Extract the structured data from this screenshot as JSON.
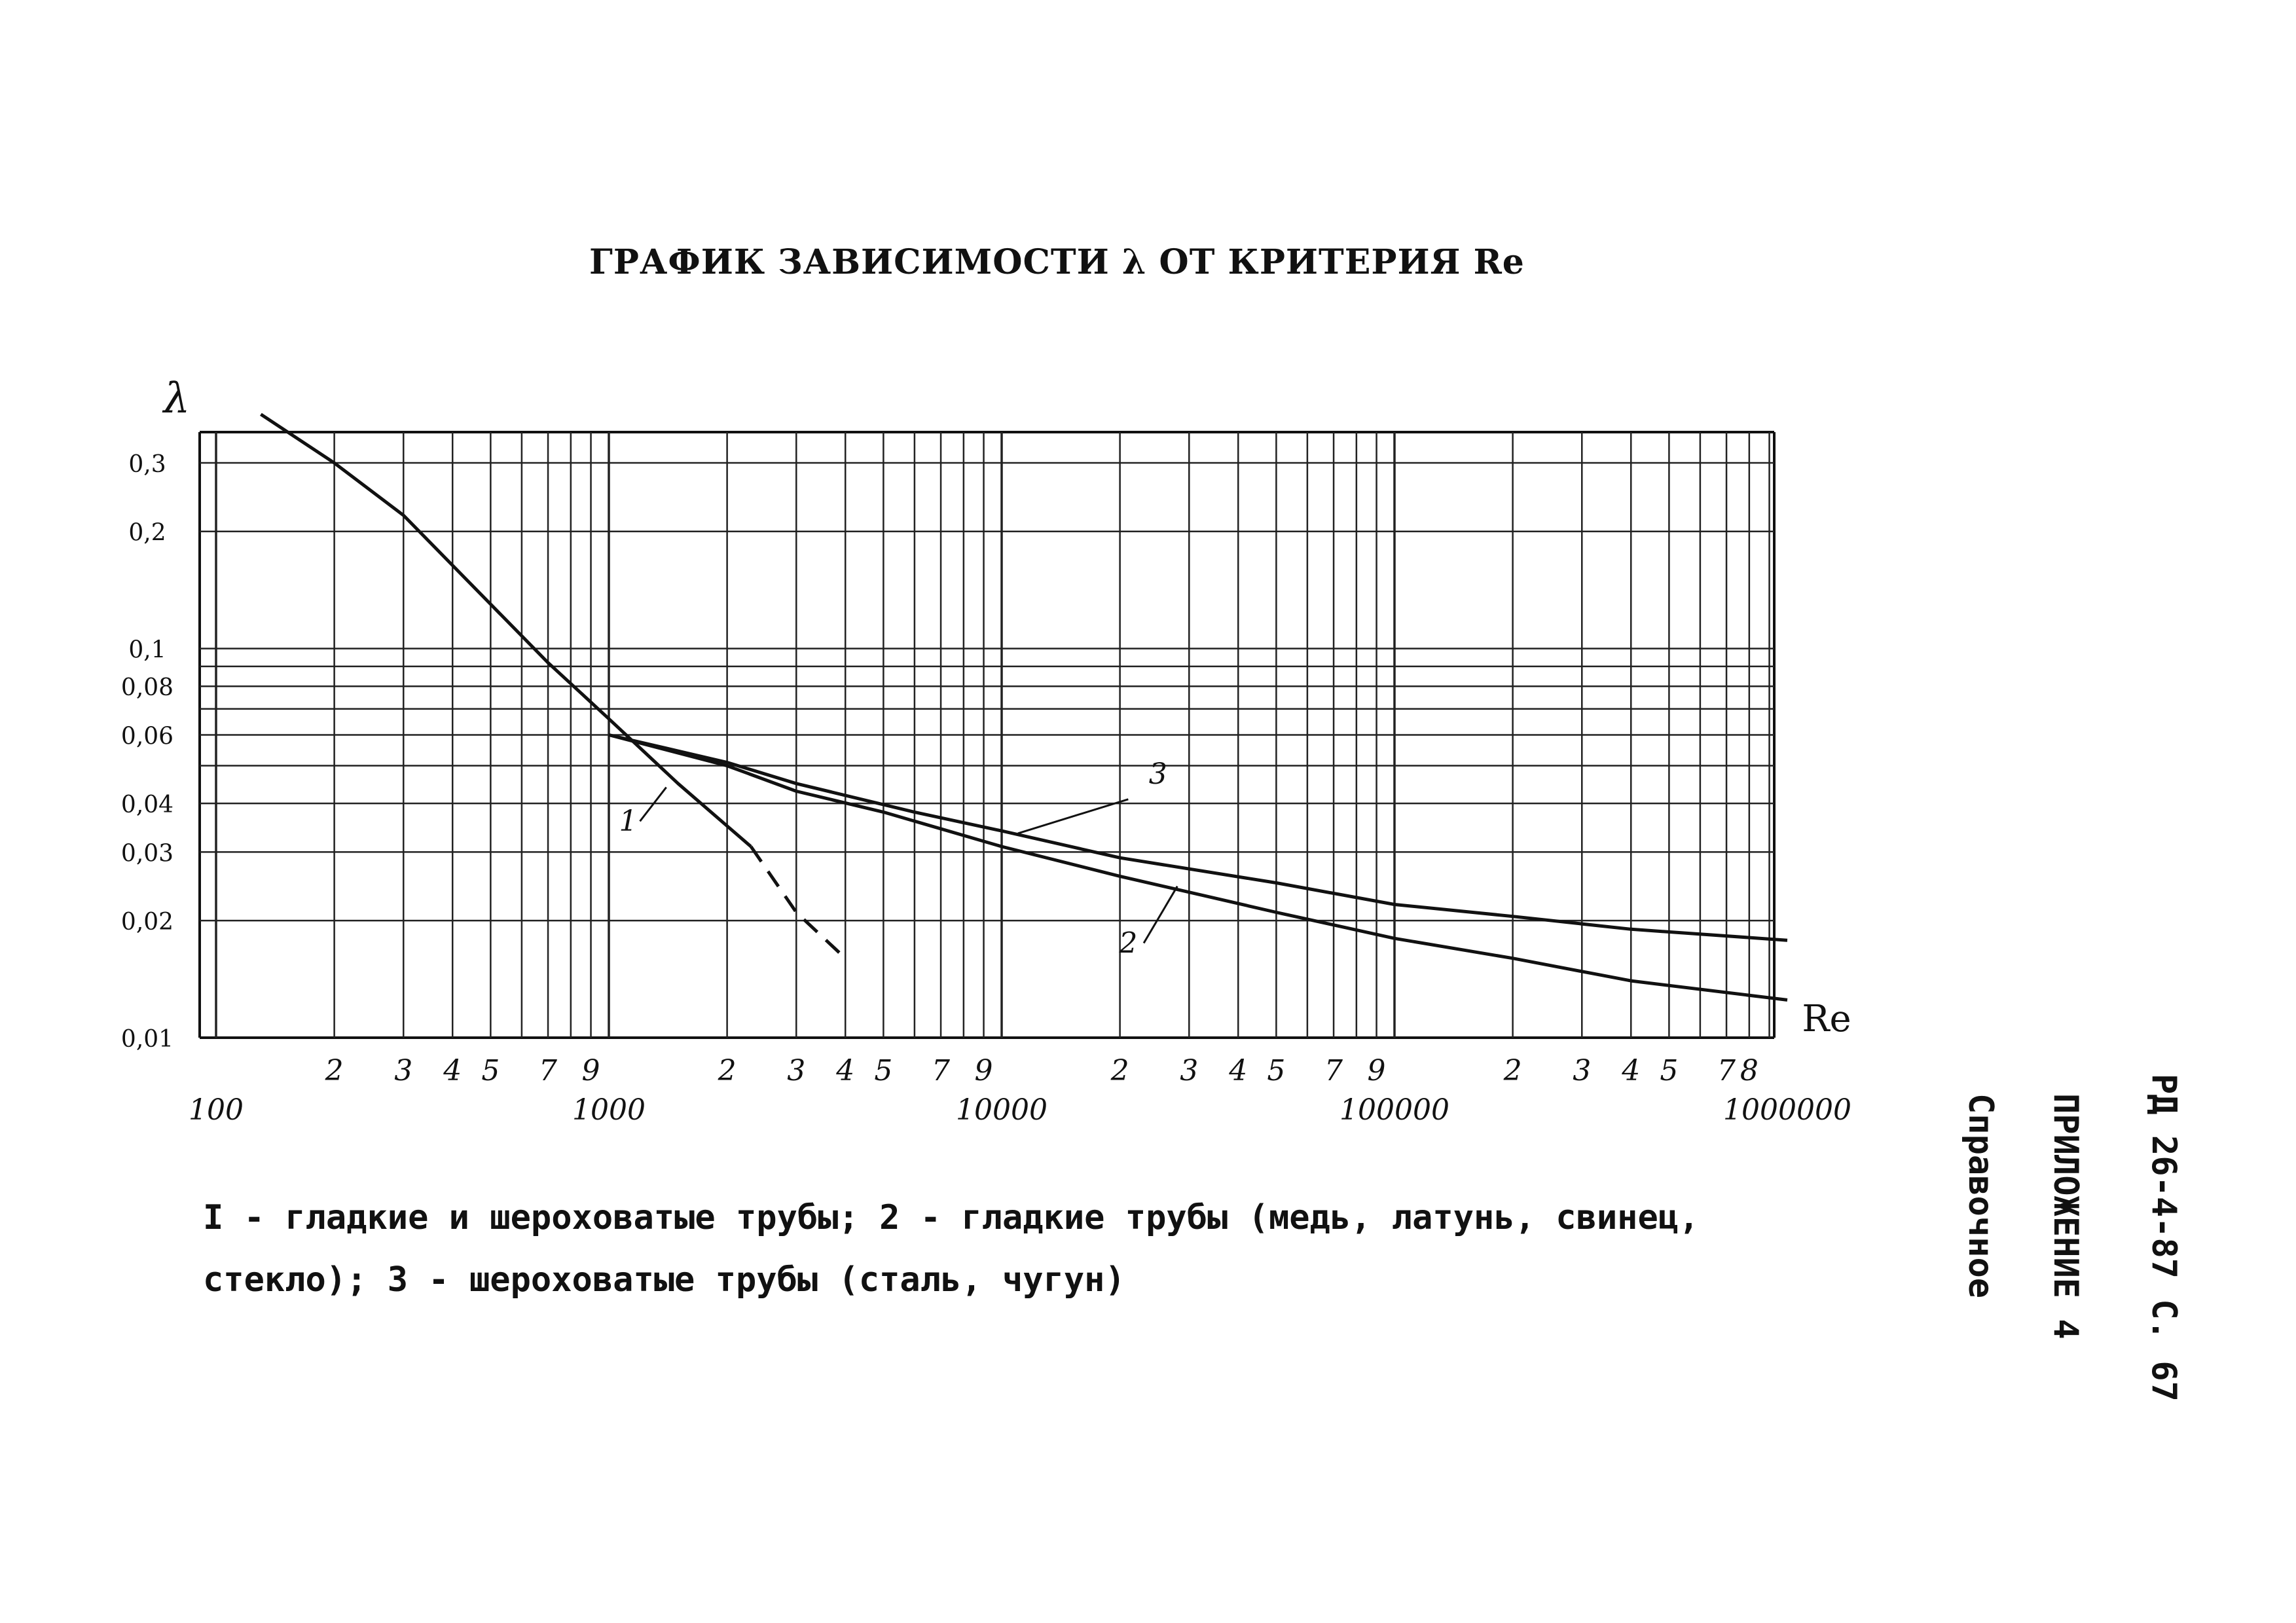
{
  "page": {
    "title": "ГРАФИК ЗАВИСИМОСТИ λ ОТ КРИТЕРИЯ Re",
    "caption_line1": "I - гладкие и шероховатые трубы; 2 - гладкие трубы (медь, латунь, свинец,",
    "caption_line2": "стекло); 3 - шероховатые трубы (сталь, чугун)",
    "side_doc": "РД 26-4-87 С. 67",
    "side_appendix": "ПРИЛОЖЕНИЕ 4",
    "side_reference": "Справочное"
  },
  "chart_data": {
    "type": "line",
    "xlabel": "Re",
    "ylabel": "λ",
    "x_scale": "log",
    "y_scale": "log",
    "xlim": [
      100,
      1000000
    ],
    "ylim": [
      0.01,
      0.36
    ],
    "grid": true,
    "x_decade_labels": [
      "100",
      "1000",
      "10000",
      "100000",
      "1000000"
    ],
    "x_decade_values": [
      100,
      1000,
      10000,
      100000,
      1000000
    ],
    "x_minor_labels": [
      "2",
      "3",
      "4",
      "5",
      "7",
      "9"
    ],
    "x_minor_multipliers": [
      2,
      3,
      4,
      5,
      7,
      9
    ],
    "x_last_decade_labels": [
      "2",
      "3",
      "4",
      "5",
      "7",
      "8"
    ],
    "x_last_decade_multipliers": [
      2,
      3,
      4,
      5,
      7,
      8
    ],
    "y_tick_labels": [
      "0,3",
      "0,2",
      "0,1",
      "0,08",
      "0,06",
      "0,04",
      "0,03",
      "0,02",
      "0,01"
    ],
    "y_tick_values": [
      0.3,
      0.2,
      0.1,
      0.08,
      0.06,
      0.04,
      0.03,
      0.02,
      0.01
    ],
    "series": [
      {
        "name": "1",
        "x": [
          130,
          200,
          300,
          500,
          700,
          1000,
          1500,
          2000,
          2300
        ],
        "y": [
          0.4,
          0.3,
          0.22,
          0.13,
          0.092,
          0.066,
          0.045,
          0.035,
          0.031
        ],
        "style": "solid"
      },
      {
        "name": "1",
        "x": [
          2300,
          3000,
          4000
        ],
        "y": [
          0.031,
          0.021,
          0.016
        ],
        "style": "dashed"
      },
      {
        "name": "2",
        "x": [
          1000,
          2000,
          3000,
          5000,
          10000,
          20000,
          50000,
          100000,
          200000,
          400000,
          1000000
        ],
        "y": [
          0.06,
          0.05,
          0.043,
          0.038,
          0.031,
          0.026,
          0.021,
          0.018,
          0.016,
          0.014,
          0.0125
        ],
        "style": "solid"
      },
      {
        "name": "3",
        "x": [
          1000,
          2000,
          3000,
          6000,
          10000,
          20000,
          50000,
          100000,
          200000,
          400000,
          1000000
        ],
        "y": [
          0.06,
          0.051,
          0.045,
          0.038,
          0.034,
          0.029,
          0.025,
          0.022,
          0.0205,
          0.019,
          0.0178
        ],
        "style": "solid"
      }
    ],
    "curve_labels": [
      "1",
      "2",
      "3"
    ]
  }
}
